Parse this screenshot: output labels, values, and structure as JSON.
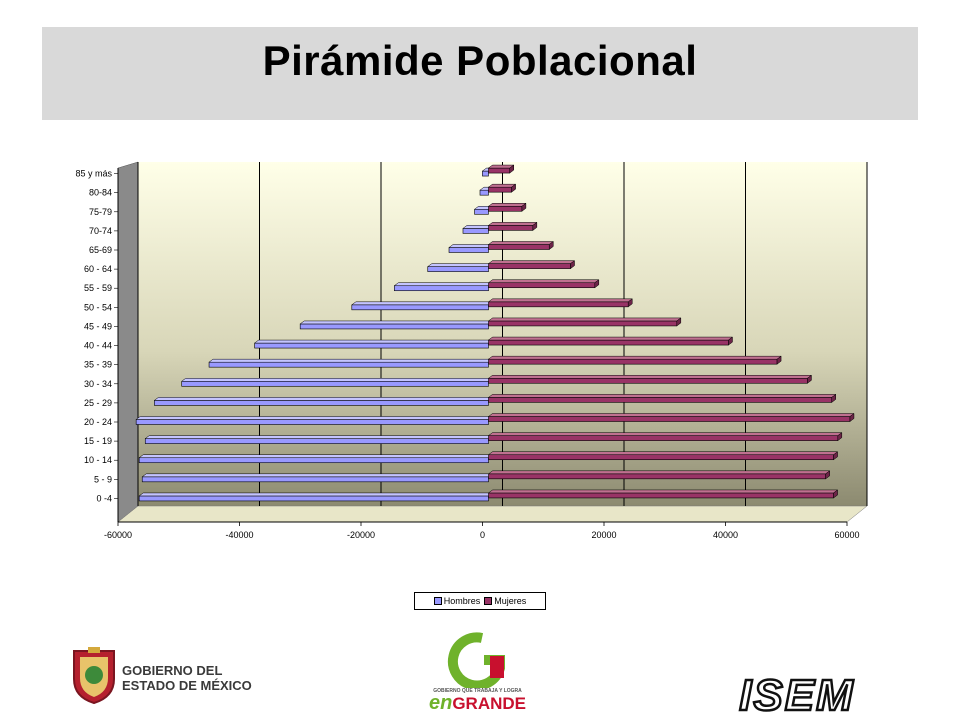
{
  "title": "Pirámide Poblacional",
  "chart_data": {
    "type": "bar",
    "orientation": "horizontal",
    "categories": [
      "0 -4",
      "5 - 9",
      "10 - 14",
      "15 - 19",
      "20 - 24",
      "25 - 29",
      "30 - 34",
      "35 - 39",
      "40 - 44",
      "45 - 49",
      "50 - 54",
      "55 - 59",
      "60 - 64",
      "65-69",
      "70-74",
      "75-79",
      "80-84",
      "85 y más"
    ],
    "series": [
      {
        "name": "Hombres",
        "values": [
          -57500,
          -57000,
          -57500,
          -56500,
          -58000,
          -55000,
          -50500,
          -46000,
          -38500,
          -31000,
          -22500,
          -15500,
          -10000,
          -6500,
          -4200,
          -2300,
          -1400,
          -1000
        ],
        "color": "#9999ff"
      },
      {
        "name": "Mujeres",
        "values": [
          56800,
          55500,
          56800,
          57500,
          59500,
          56500,
          52500,
          47500,
          39500,
          31000,
          23000,
          17500,
          13500,
          10000,
          7300,
          5500,
          3800,
          3500
        ],
        "color": "#993366"
      }
    ],
    "xlim": [
      -60000,
      60000
    ],
    "xticks": [
      "-60000",
      "-40000",
      "-20000",
      "0",
      "20000",
      "40000",
      "60000"
    ],
    "xtick_values": [
      -60000,
      -40000,
      -20000,
      0,
      20000,
      40000,
      60000
    ],
    "grid": true,
    "legend_position": "bottom-center"
  },
  "footer": {
    "gobierno_line1": "GOBIERNO DEL",
    "gobierno_line2": "ESTADO DE MÉXICO",
    "engrande_tagline": "GOBIERNO QUE TRABAJA Y LOGRA",
    "engrande_en": "en",
    "engrande_grande": "GRANDE",
    "isem": "ISEM"
  }
}
